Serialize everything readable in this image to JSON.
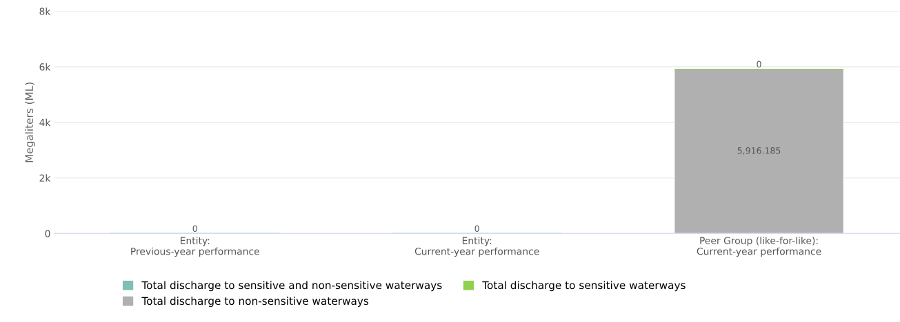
{
  "chart_data": {
    "type": "bar",
    "stacked": true,
    "ylabel": "Megaliters (ML)",
    "categories": [
      "Entity:\nPrevious-year performance",
      "Entity:\nCurrent-year performance",
      "Peer Group (like-for-like):\nCurrent-year performance"
    ],
    "series": [
      {
        "name": "Total discharge to sensitive and non-sensitive waterways",
        "color": "#7fbfb5",
        "values": [
          0,
          0,
          null
        ],
        "value_labels": [
          "0",
          "0",
          null
        ]
      },
      {
        "name": "Total discharge to non-sensitive waterways",
        "color": "#b0b0b0",
        "values": [
          null,
          null,
          5916.185
        ],
        "value_labels": [
          null,
          null,
          "5,916.185"
        ]
      },
      {
        "name": "Total discharge to sensitive waterways",
        "color": "#8fd14f",
        "values": [
          null,
          null,
          0
        ],
        "value_labels": [
          null,
          null,
          "0"
        ]
      }
    ],
    "ylim": [
      0,
      8000
    ],
    "yticks": [
      {
        "value": 0,
        "label": "0"
      },
      {
        "value": 2000,
        "label": "2k"
      },
      {
        "value": 4000,
        "label": "4k"
      },
      {
        "value": 6000,
        "label": "6k"
      },
      {
        "value": 8000,
        "label": "8k"
      }
    ],
    "grid": "y",
    "legend": "bottom"
  }
}
